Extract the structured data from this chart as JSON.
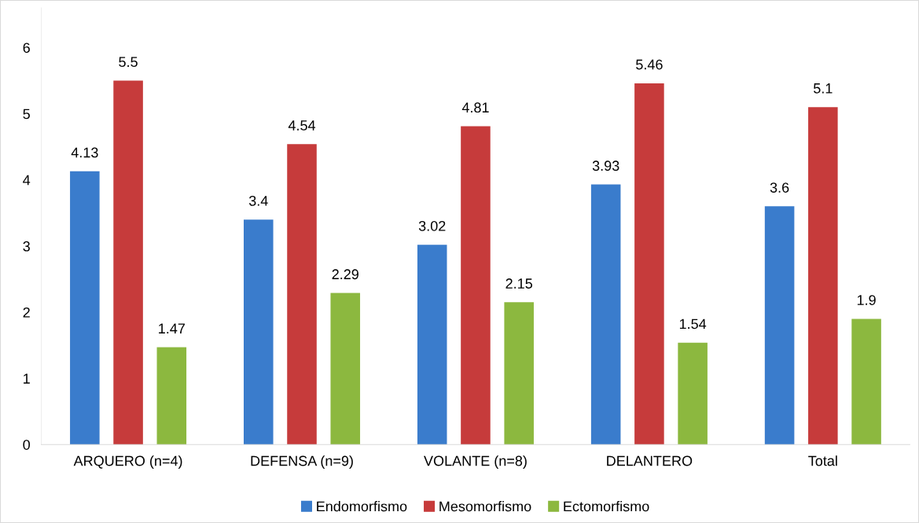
{
  "chart_data": {
    "type": "bar",
    "categories": [
      "ARQUERO (n=4)",
      "DEFENSA (n=9)",
      "VOLANTE (n=8)",
      "DELANTERO",
      "Total"
    ],
    "series": [
      {
        "name": "Endomorfismo",
        "color": "#3a7ccc",
        "values": [
          4.13,
          3.4,
          3.02,
          3.93,
          3.6
        ]
      },
      {
        "name": "Mesomorfismo",
        "color": "#c63b3b",
        "values": [
          5.5,
          4.54,
          4.81,
          5.46,
          5.1
        ]
      },
      {
        "name": "Ectomorfismo",
        "color": "#8cb83f",
        "values": [
          1.47,
          2.29,
          2.15,
          1.54,
          1.9
        ]
      }
    ],
    "ylim": [
      0,
      6.6
    ],
    "yticks": [
      0,
      1,
      2,
      3,
      4,
      5,
      6
    ],
    "grid": false,
    "legend": "bottom",
    "data_labels": true
  }
}
